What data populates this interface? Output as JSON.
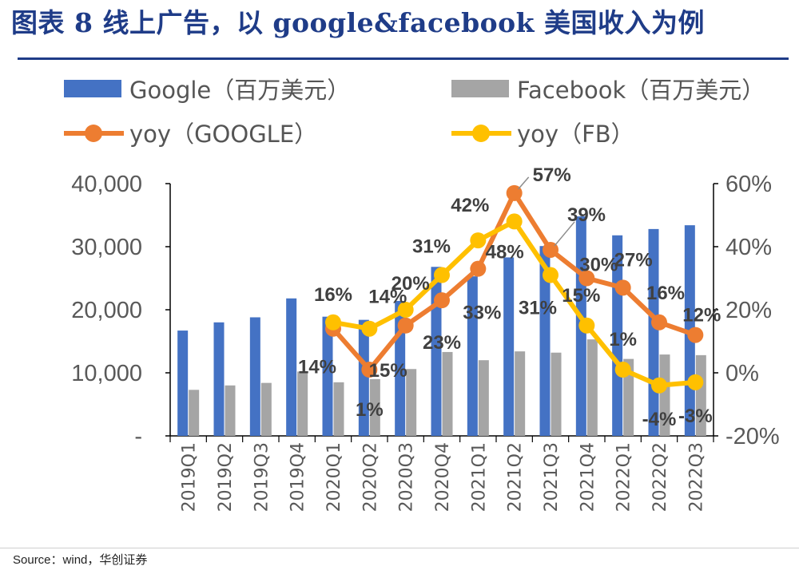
{
  "header": {
    "title": "图表 8  线上广告，以 google&facebook 美国收入为例"
  },
  "footer": {
    "source": "Source：wind，华创证券"
  },
  "chart_data": {
    "type": "bar",
    "categories": [
      "2019Q1",
      "2019Q2",
      "2019Q3",
      "2019Q4",
      "2020Q1",
      "2020Q2",
      "2020Q3",
      "2020Q4",
      "2021Q1",
      "2021Q2",
      "2021Q3",
      "2021Q4",
      "2022Q1",
      "2022Q2",
      "2022Q3"
    ],
    "left_axis": {
      "ylim": [
        0,
        40000
      ],
      "tick_labels": [
        "-",
        "10,000",
        "20,000",
        "30,000",
        "40,000"
      ]
    },
    "right_axis": {
      "ylim": [
        -0.2,
        0.6
      ],
      "tick_labels": [
        "-20%",
        "0%",
        "20%",
        "40%",
        "60%"
      ]
    },
    "legend_position": "top",
    "series": [
      {
        "name": "Google（百万美元）",
        "type": "bar",
        "axis": "left",
        "color": "#4472c4",
        "values": [
          16700,
          18000,
          18800,
          21800,
          18900,
          18400,
          21400,
          26800,
          25300,
          28300,
          30100,
          34800,
          31800,
          32800,
          33400
        ]
      },
      {
        "name": "Facebook（百万美元）",
        "type": "bar",
        "axis": "left",
        "color": "#a5a5a5",
        "values": [
          7300,
          8000,
          8400,
          10200,
          8500,
          9000,
          10600,
          13300,
          12000,
          13400,
          13200,
          15300,
          12200,
          12900,
          12800
        ]
      },
      {
        "name": "yoy（GOOGLE）",
        "type": "line",
        "axis": "right",
        "color": "#ed7d31",
        "values": [
          null,
          null,
          null,
          null,
          0.14,
          0.01,
          0.15,
          0.23,
          0.33,
          0.57,
          0.39,
          0.3,
          0.27,
          0.16,
          0.12
        ],
        "labels": [
          "",
          "",
          "",
          "",
          "14%",
          "1%",
          "15%",
          "23%",
          "33%",
          "57%",
          "39%",
          "30%",
          "27%",
          "16%",
          "12%"
        ]
      },
      {
        "name": "yoy（FB）",
        "type": "line",
        "axis": "right",
        "color": "#ffc000",
        "values": [
          null,
          null,
          null,
          null,
          0.16,
          0.14,
          0.2,
          0.31,
          0.42,
          0.48,
          0.31,
          0.15,
          0.01,
          -0.04,
          -0.03
        ],
        "labels": [
          "",
          "",
          "",
          "",
          "16%",
          "14%",
          "20%",
          "31%",
          "42%",
          "48%",
          "31%",
          "15%",
          "1%",
          "-4%",
          "-3%"
        ]
      }
    ]
  }
}
